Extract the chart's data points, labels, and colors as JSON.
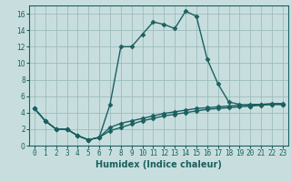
{
  "title": "",
  "xlabel": "Humidex (Indice chaleur)",
  "bg_color": "#c8dede",
  "grid_color": "#9cbcbc",
  "line_color": "#1a6060",
  "xlim": [
    -0.5,
    23.5
  ],
  "ylim": [
    0,
    17
  ],
  "xticks": [
    0,
    1,
    2,
    3,
    4,
    5,
    6,
    7,
    8,
    9,
    10,
    11,
    12,
    13,
    14,
    15,
    16,
    17,
    18,
    19,
    20,
    21,
    22,
    23
  ],
  "yticks": [
    0,
    2,
    4,
    6,
    8,
    10,
    12,
    14,
    16
  ],
  "series1_x": [
    0,
    1,
    2,
    3,
    4,
    5,
    6,
    7,
    8,
    9,
    10,
    11,
    12,
    13,
    14,
    15,
    16,
    17,
    18,
    19,
    20,
    21,
    22,
    23
  ],
  "series1_y": [
    4.5,
    3.0,
    2.0,
    2.0,
    1.2,
    0.7,
    1.0,
    5.0,
    12.0,
    12.0,
    13.5,
    15.0,
    14.7,
    14.2,
    16.3,
    15.7,
    10.5,
    7.5,
    5.3,
    5.0,
    4.8,
    5.0,
    5.0,
    5.0
  ],
  "series2_x": [
    0,
    1,
    2,
    3,
    4,
    5,
    6,
    7,
    8,
    9,
    10,
    11,
    12,
    13,
    14,
    15,
    16,
    17,
    18,
    19,
    20,
    21,
    22,
    23
  ],
  "series2_y": [
    4.5,
    3.0,
    2.0,
    2.0,
    1.2,
    0.7,
    1.0,
    1.8,
    2.2,
    2.6,
    3.0,
    3.3,
    3.6,
    3.8,
    4.0,
    4.2,
    4.4,
    4.5,
    4.6,
    4.7,
    4.8,
    4.9,
    5.0,
    5.0
  ],
  "series3_x": [
    0,
    1,
    2,
    3,
    4,
    5,
    6,
    7,
    8,
    9,
    10,
    11,
    12,
    13,
    14,
    15,
    16,
    17,
    18,
    19,
    20,
    21,
    22,
    23
  ],
  "series3_y": [
    4.5,
    3.0,
    2.0,
    2.0,
    1.2,
    0.7,
    1.0,
    2.2,
    2.7,
    3.0,
    3.3,
    3.6,
    3.9,
    4.1,
    4.3,
    4.5,
    4.6,
    4.7,
    4.8,
    4.9,
    5.0,
    5.0,
    5.1,
    5.1
  ],
  "marker_style": "D",
  "marker_size": 2.5,
  "line_width": 1.0,
  "xlabel_fontsize": 7,
  "tick_fontsize": 5.5
}
